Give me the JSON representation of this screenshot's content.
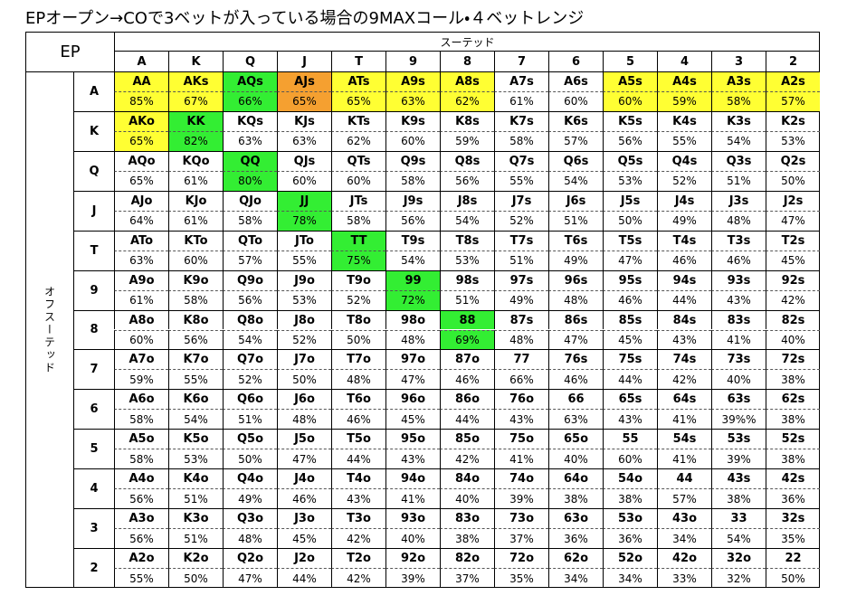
{
  "title": "EPオープン→COで3ベットが入っている場合の9MAXコール・４ベットレンジ",
  "table": {
    "corner": "EP",
    "column_group": "スーテッド",
    "row_group": "オフスーテッド",
    "columns": [
      "A",
      "K",
      "Q",
      "J",
      "T",
      "9",
      "8",
      "7",
      "6",
      "5",
      "4",
      "3",
      "2"
    ],
    "rows": [
      {
        "label": "A",
        "cells": [
          {
            "hand": "AA",
            "equity": "85%",
            "fill": "#ffff33"
          },
          {
            "hand": "AKs",
            "equity": "67%",
            "fill": "#ffff33"
          },
          {
            "hand": "AQs",
            "equity": "66%",
            "fill": "#33ee33"
          },
          {
            "hand": "AJs",
            "equity": "65%",
            "fill": "#f5a030"
          },
          {
            "hand": "ATs",
            "equity": "65%",
            "fill": "#ffff33"
          },
          {
            "hand": "A9s",
            "equity": "63%",
            "fill": "#ffff33"
          },
          {
            "hand": "A8s",
            "equity": "62%",
            "fill": "#ffff33"
          },
          {
            "hand": "A7s",
            "equity": "61%"
          },
          {
            "hand": "A6s",
            "equity": "60%"
          },
          {
            "hand": "A5s",
            "equity": "60%",
            "fill": "#ffff33"
          },
          {
            "hand": "A4s",
            "equity": "59%",
            "fill": "#ffff33"
          },
          {
            "hand": "A3s",
            "equity": "58%",
            "fill": "#ffff33"
          },
          {
            "hand": "A2s",
            "equity": "57%",
            "fill": "#ffff33"
          }
        ]
      },
      {
        "label": "K",
        "cells": [
          {
            "hand": "AKo",
            "equity": "65%",
            "fill": "#ffff33"
          },
          {
            "hand": "KK",
            "equity": "82%",
            "fill": "#33ee33"
          },
          {
            "hand": "KQs",
            "equity": "63%"
          },
          {
            "hand": "KJs",
            "equity": "63%"
          },
          {
            "hand": "KTs",
            "equity": "62%"
          },
          {
            "hand": "K9s",
            "equity": "60%"
          },
          {
            "hand": "K8s",
            "equity": "59%"
          },
          {
            "hand": "K7s",
            "equity": "58%"
          },
          {
            "hand": "K6s",
            "equity": "57%"
          },
          {
            "hand": "K5s",
            "equity": "56%"
          },
          {
            "hand": "K4s",
            "equity": "55%"
          },
          {
            "hand": "K3s",
            "equity": "54%"
          },
          {
            "hand": "K2s",
            "equity": "53%"
          }
        ]
      },
      {
        "label": "Q",
        "cells": [
          {
            "hand": "AQo",
            "equity": "65%"
          },
          {
            "hand": "KQo",
            "equity": "61%"
          },
          {
            "hand": "QQ",
            "equity": "80%",
            "fill": "#33ee33"
          },
          {
            "hand": "QJs",
            "equity": "60%"
          },
          {
            "hand": "QTs",
            "equity": "60%"
          },
          {
            "hand": "Q9s",
            "equity": "58%"
          },
          {
            "hand": "Q8s",
            "equity": "56%"
          },
          {
            "hand": "Q7s",
            "equity": "55%"
          },
          {
            "hand": "Q6s",
            "equity": "54%"
          },
          {
            "hand": "Q5s",
            "equity": "53%"
          },
          {
            "hand": "Q4s",
            "equity": "52%"
          },
          {
            "hand": "Q3s",
            "equity": "51%"
          },
          {
            "hand": "Q2s",
            "equity": "50%"
          }
        ]
      },
      {
        "label": "J",
        "cells": [
          {
            "hand": "AJo",
            "equity": "64%"
          },
          {
            "hand": "KJo",
            "equity": "61%"
          },
          {
            "hand": "QJo",
            "equity": "58%"
          },
          {
            "hand": "JJ",
            "equity": "78%",
            "fill": "#33ee33"
          },
          {
            "hand": "JTs",
            "equity": "58%"
          },
          {
            "hand": "J9s",
            "equity": "56%"
          },
          {
            "hand": "J8s",
            "equity": "54%"
          },
          {
            "hand": "J7s",
            "equity": "52%"
          },
          {
            "hand": "J6s",
            "equity": "51%"
          },
          {
            "hand": "J5s",
            "equity": "50%"
          },
          {
            "hand": "J4s",
            "equity": "49%"
          },
          {
            "hand": "J3s",
            "equity": "48%"
          },
          {
            "hand": "J2s",
            "equity": "47%"
          }
        ]
      },
      {
        "label": "T",
        "cells": [
          {
            "hand": "ATo",
            "equity": "63%"
          },
          {
            "hand": "KTo",
            "equity": "60%"
          },
          {
            "hand": "QTo",
            "equity": "57%"
          },
          {
            "hand": "JTo",
            "equity": "55%"
          },
          {
            "hand": "TT",
            "equity": "75%",
            "fill": "#33ee33"
          },
          {
            "hand": "T9s",
            "equity": "54%"
          },
          {
            "hand": "T8s",
            "equity": "53%"
          },
          {
            "hand": "T7s",
            "equity": "51%"
          },
          {
            "hand": "T6s",
            "equity": "49%"
          },
          {
            "hand": "T5s",
            "equity": "47%"
          },
          {
            "hand": "T4s",
            "equity": "46%"
          },
          {
            "hand": "T3s",
            "equity": "46%"
          },
          {
            "hand": "T2s",
            "equity": "45%"
          }
        ]
      },
      {
        "label": "9",
        "cells": [
          {
            "hand": "A9o",
            "equity": "61%"
          },
          {
            "hand": "K9o",
            "equity": "58%"
          },
          {
            "hand": "Q9o",
            "equity": "56%"
          },
          {
            "hand": "J9o",
            "equity": "53%"
          },
          {
            "hand": "T9o",
            "equity": "52%"
          },
          {
            "hand": "99",
            "equity": "72%",
            "fill": "#33ee33"
          },
          {
            "hand": "98s",
            "equity": "51%"
          },
          {
            "hand": "97s",
            "equity": "49%"
          },
          {
            "hand": "96s",
            "equity": "48%"
          },
          {
            "hand": "95s",
            "equity": "46%"
          },
          {
            "hand": "94s",
            "equity": "44%"
          },
          {
            "hand": "93s",
            "equity": "43%"
          },
          {
            "hand": "92s",
            "equity": "42%"
          }
        ]
      },
      {
        "label": "8",
        "cells": [
          {
            "hand": "A8o",
            "equity": "60%"
          },
          {
            "hand": "K8o",
            "equity": "56%"
          },
          {
            "hand": "Q8o",
            "equity": "54%"
          },
          {
            "hand": "J8o",
            "equity": "52%"
          },
          {
            "hand": "T8o",
            "equity": "50%"
          },
          {
            "hand": "98o",
            "equity": "48%"
          },
          {
            "hand": "88",
            "equity": "69%",
            "fill": "#33ee33"
          },
          {
            "hand": "87s",
            "equity": "48%"
          },
          {
            "hand": "86s",
            "equity": "47%"
          },
          {
            "hand": "85s",
            "equity": "45%"
          },
          {
            "hand": "84s",
            "equity": "43%"
          },
          {
            "hand": "83s",
            "equity": "41%"
          },
          {
            "hand": "82s",
            "equity": "40%"
          }
        ]
      },
      {
        "label": "7",
        "cells": [
          {
            "hand": "A7o",
            "equity": "59%"
          },
          {
            "hand": "K7o",
            "equity": "55%"
          },
          {
            "hand": "Q7o",
            "equity": "52%"
          },
          {
            "hand": "J7o",
            "equity": "50%"
          },
          {
            "hand": "T7o",
            "equity": "48%"
          },
          {
            "hand": "97o",
            "equity": "47%"
          },
          {
            "hand": "87o",
            "equity": "46%"
          },
          {
            "hand": "77",
            "equity": "66%"
          },
          {
            "hand": "76s",
            "equity": "46%"
          },
          {
            "hand": "75s",
            "equity": "44%"
          },
          {
            "hand": "74s",
            "equity": "42%"
          },
          {
            "hand": "73s",
            "equity": "40%"
          },
          {
            "hand": "72s",
            "equity": "38%"
          }
        ]
      },
      {
        "label": "6",
        "cells": [
          {
            "hand": "A6o",
            "equity": "58%"
          },
          {
            "hand": "K6o",
            "equity": "54%"
          },
          {
            "hand": "Q6o",
            "equity": "51%"
          },
          {
            "hand": "J6o",
            "equity": "48%"
          },
          {
            "hand": "T6o",
            "equity": "46%"
          },
          {
            "hand": "96o",
            "equity": "45%"
          },
          {
            "hand": "86o",
            "equity": "44%"
          },
          {
            "hand": "76o",
            "equity": "43%"
          },
          {
            "hand": "66",
            "equity": "63%"
          },
          {
            "hand": "65s",
            "equity": "43%"
          },
          {
            "hand": "64s",
            "equity": "41%"
          },
          {
            "hand": "63s",
            "equity": "39%%"
          },
          {
            "hand": "62s",
            "equity": "38%"
          }
        ]
      },
      {
        "label": "5",
        "cells": [
          {
            "hand": "A5o",
            "equity": "58%"
          },
          {
            "hand": "K5o",
            "equity": "53%"
          },
          {
            "hand": "Q5o",
            "equity": "50%"
          },
          {
            "hand": "J5o",
            "equity": "47%"
          },
          {
            "hand": "T5o",
            "equity": "44%"
          },
          {
            "hand": "95o",
            "equity": "43%"
          },
          {
            "hand": "85o",
            "equity": "42%"
          },
          {
            "hand": "75o",
            "equity": "41%"
          },
          {
            "hand": "65o",
            "equity": "40%"
          },
          {
            "hand": "55",
            "equity": "60%"
          },
          {
            "hand": "54s",
            "equity": "41%"
          },
          {
            "hand": "53s",
            "equity": "39%"
          },
          {
            "hand": "52s",
            "equity": "38%"
          }
        ]
      },
      {
        "label": "4",
        "cells": [
          {
            "hand": "A4o",
            "equity": "56%"
          },
          {
            "hand": "K4o",
            "equity": "51%"
          },
          {
            "hand": "Q4o",
            "equity": "49%"
          },
          {
            "hand": "J4o",
            "equity": "46%"
          },
          {
            "hand": "T4o",
            "equity": "43%"
          },
          {
            "hand": "94o",
            "equity": "41%"
          },
          {
            "hand": "84o",
            "equity": "40%"
          },
          {
            "hand": "74o",
            "equity": "39%"
          },
          {
            "hand": "64o",
            "equity": "38%"
          },
          {
            "hand": "54o",
            "equity": "38%"
          },
          {
            "hand": "44",
            "equity": "57%"
          },
          {
            "hand": "43s",
            "equity": "38%"
          },
          {
            "hand": "42s",
            "equity": "36%"
          }
        ]
      },
      {
        "label": "3",
        "cells": [
          {
            "hand": "A3o",
            "equity": "56%"
          },
          {
            "hand": "K3o",
            "equity": "51%"
          },
          {
            "hand": "Q3o",
            "equity": "48%"
          },
          {
            "hand": "J3o",
            "equity": "45%"
          },
          {
            "hand": "T3o",
            "equity": "42%"
          },
          {
            "hand": "93o",
            "equity": "40%"
          },
          {
            "hand": "83o",
            "equity": "38%"
          },
          {
            "hand": "73o",
            "equity": "37%"
          },
          {
            "hand": "63o",
            "equity": "36%"
          },
          {
            "hand": "53o",
            "equity": "36%"
          },
          {
            "hand": "43o",
            "equity": "34%"
          },
          {
            "hand": "33",
            "equity": "54%"
          },
          {
            "hand": "32s",
            "equity": "35%"
          }
        ]
      },
      {
        "label": "2",
        "cells": [
          {
            "hand": "A2o",
            "equity": "55%"
          },
          {
            "hand": "K2o",
            "equity": "50%"
          },
          {
            "hand": "Q2o",
            "equity": "47%"
          },
          {
            "hand": "J2o",
            "equity": "44%"
          },
          {
            "hand": "T2o",
            "equity": "42%"
          },
          {
            "hand": "92o",
            "equity": "39%"
          },
          {
            "hand": "82o",
            "equity": "37%"
          },
          {
            "hand": "72o",
            "equity": "35%"
          },
          {
            "hand": "62o",
            "equity": "34%"
          },
          {
            "hand": "52o",
            "equity": "34%"
          },
          {
            "hand": "42o",
            "equity": "33%"
          },
          {
            "hand": "32o",
            "equity": "32%"
          },
          {
            "hand": "22",
            "equity": "50%"
          }
        ]
      }
    ]
  }
}
